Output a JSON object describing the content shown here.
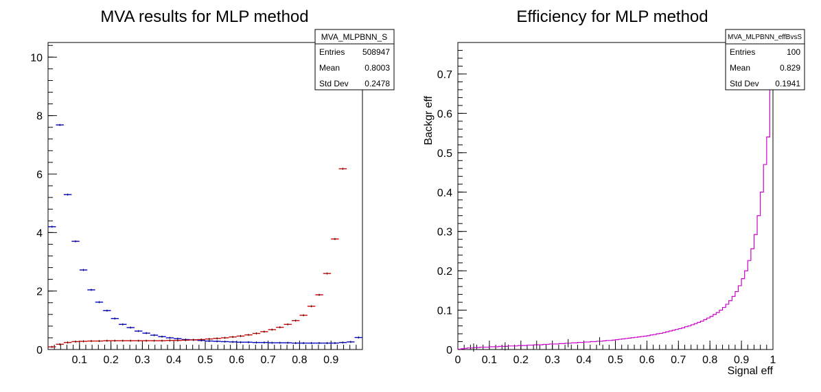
{
  "chart_data": [
    {
      "type": "histogram",
      "title": "MVA results for MLP method",
      "xlabel": "",
      "ylabel": "",
      "xlim": [
        0,
        1
      ],
      "ylim": [
        0,
        10.5
      ],
      "xticks": [
        0.1,
        0.2,
        0.3,
        0.4,
        0.5,
        0.6,
        0.7,
        0.8,
        0.9
      ],
      "xtick_labels": [
        "0.1",
        "0.2",
        "0.3",
        "0.4",
        "0.5",
        "0.6",
        "0.7",
        "0.8",
        "0.9"
      ],
      "yticks": [
        0,
        2,
        4,
        6,
        8,
        10
      ],
      "ytick_labels": [
        "0",
        "2",
        "4",
        "6",
        "8",
        "10"
      ],
      "bin_width": 0.025,
      "series": [
        {
          "color": "#0000cc",
          "x": [
            0.0125,
            0.0375,
            0.0625,
            0.0875,
            0.1125,
            0.1375,
            0.1625,
            0.1875,
            0.2125,
            0.2375,
            0.2625,
            0.2875,
            0.3125,
            0.3375,
            0.3625,
            0.3875,
            0.4125,
            0.4375,
            0.4625,
            0.4875,
            0.5125,
            0.5375,
            0.5625,
            0.5875,
            0.6125,
            0.6375,
            0.6625,
            0.6875,
            0.7125,
            0.7375,
            0.7625,
            0.7875,
            0.8125,
            0.8375,
            0.8625,
            0.8875,
            0.9125,
            0.9375,
            0.9625,
            0.9875
          ],
          "values": [
            4.2,
            7.68,
            5.3,
            3.7,
            2.72,
            2.04,
            1.62,
            1.33,
            1.06,
            0.86,
            0.75,
            0.63,
            0.56,
            0.49,
            0.44,
            0.4,
            0.37,
            0.34,
            0.33,
            0.31,
            0.29,
            0.28,
            0.27,
            0.26,
            0.25,
            0.25,
            0.24,
            0.24,
            0.23,
            0.23,
            0.23,
            0.22,
            0.22,
            0.22,
            0.22,
            0.22,
            0.22,
            0.24,
            0.26,
            0.41
          ]
        },
        {
          "color": "#cc0000",
          "x": [
            0.0125,
            0.0375,
            0.0625,
            0.0875,
            0.1125,
            0.1375,
            0.1625,
            0.1875,
            0.2125,
            0.2375,
            0.2625,
            0.2875,
            0.3125,
            0.3375,
            0.3625,
            0.3875,
            0.4125,
            0.4375,
            0.4625,
            0.4875,
            0.5125,
            0.5375,
            0.5625,
            0.5875,
            0.6125,
            0.6375,
            0.6625,
            0.6875,
            0.7125,
            0.7375,
            0.7625,
            0.7875,
            0.8125,
            0.8375,
            0.8625,
            0.8875,
            0.9125,
            0.9375,
            0.9625,
            0.9875
          ],
          "values": [
            0.09,
            0.18,
            0.24,
            0.27,
            0.28,
            0.29,
            0.29,
            0.3,
            0.3,
            0.3,
            0.3,
            0.3,
            0.3,
            0.3,
            0.3,
            0.31,
            0.31,
            0.32,
            0.33,
            0.34,
            0.36,
            0.38,
            0.4,
            0.43,
            0.46,
            0.5,
            0.55,
            0.61,
            0.68,
            0.76,
            0.86,
            0.99,
            1.17,
            1.48,
            1.87,
            2.6,
            3.78,
            6.18,
            0.0,
            0.0
          ]
        }
      ],
      "stats_box": {
        "name": "MVA_MLPBNN_S",
        "rows": [
          {
            "label": "Entries",
            "value": "508947"
          },
          {
            "label": "Mean",
            "value": "0.8003"
          },
          {
            "label": "Std Dev",
            "value": "0.2478"
          }
        ]
      }
    },
    {
      "type": "histogram",
      "title": "Efficiency for MLP method",
      "xlabel": "Signal eff",
      "ylabel": "Backgr eff",
      "xlim": [
        0,
        1
      ],
      "ylim": [
        0,
        0.78
      ],
      "xticks": [
        0,
        0.1,
        0.2,
        0.3,
        0.4,
        0.5,
        0.6,
        0.7,
        0.8,
        0.9,
        1
      ],
      "xtick_labels": [
        "0",
        "0.1",
        "0.2",
        "0.3",
        "0.4",
        "0.5",
        "0.6",
        "0.7",
        "0.8",
        "0.9",
        "1"
      ],
      "yticks": [
        0,
        0.1,
        0.2,
        0.3,
        0.4,
        0.5,
        0.6,
        0.7
      ],
      "ytick_labels": [
        "0",
        "0.1",
        "0.2",
        "0.3",
        "0.4",
        "0.5",
        "0.6",
        "0.7"
      ],
      "bin_width": 0.01,
      "series": [
        {
          "color": "#cc00cc",
          "values": [
            0.001,
            0.002,
            0.003,
            0.004,
            0.004,
            0.005,
            0.005,
            0.006,
            0.006,
            0.006,
            0.007,
            0.007,
            0.007,
            0.008,
            0.008,
            0.008,
            0.009,
            0.009,
            0.009,
            0.01,
            0.01,
            0.01,
            0.011,
            0.011,
            0.012,
            0.012,
            0.012,
            0.013,
            0.013,
            0.014,
            0.014,
            0.014,
            0.015,
            0.015,
            0.016,
            0.016,
            0.017,
            0.017,
            0.018,
            0.018,
            0.019,
            0.019,
            0.02,
            0.02,
            0.021,
            0.021,
            0.022,
            0.023,
            0.023,
            0.024,
            0.025,
            0.026,
            0.027,
            0.028,
            0.029,
            0.03,
            0.031,
            0.032,
            0.033,
            0.034,
            0.035,
            0.037,
            0.038,
            0.04,
            0.041,
            0.043,
            0.045,
            0.047,
            0.049,
            0.051,
            0.053,
            0.055,
            0.058,
            0.06,
            0.063,
            0.066,
            0.069,
            0.072,
            0.076,
            0.08,
            0.084,
            0.089,
            0.094,
            0.1,
            0.107,
            0.115,
            0.124,
            0.135,
            0.147,
            0.162,
            0.18,
            0.2,
            0.226,
            0.256,
            0.292,
            0.34,
            0.4,
            0.47,
            0.54,
            0.72
          ]
        }
      ],
      "stats_box": {
        "name": "MVA_MLPBNN_effBvsS",
        "rows": [
          {
            "label": "Entries",
            "value": "100"
          },
          {
            "label": "Mean",
            "value": "0.829"
          },
          {
            "label": "Std Dev",
            "value": "0.1941"
          }
        ]
      }
    }
  ]
}
